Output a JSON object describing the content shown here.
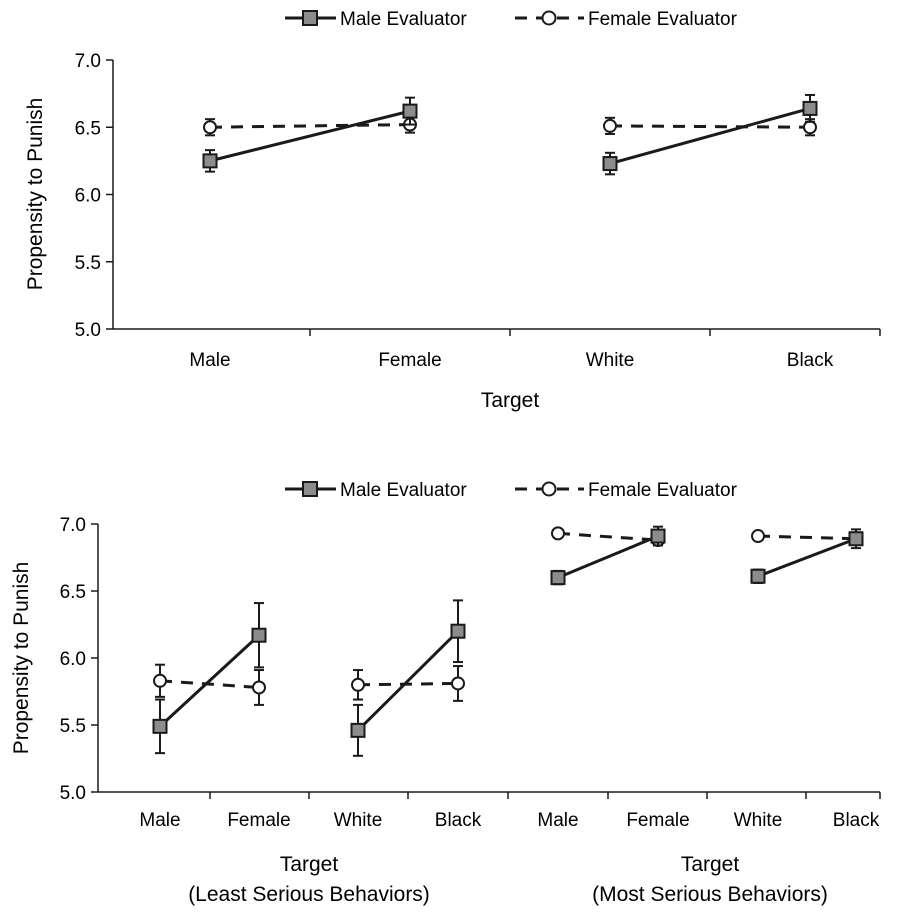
{
  "chart_data": [
    {
      "type": "line",
      "ylabel": "Propensity to Punish",
      "xlabel": "Target",
      "ylim": [
        5.0,
        7.0
      ],
      "yticks": [
        "5.0",
        "5.5",
        "6.0",
        "6.5",
        "7.0"
      ],
      "legend": {
        "placement": "top-center",
        "entries": [
          "Male Evaluator",
          "Female Evaluator"
        ]
      },
      "groups": [
        {
          "categories": [
            "Male",
            "Female"
          ]
        },
        {
          "categories": [
            "White",
            "Black"
          ]
        }
      ],
      "series": [
        {
          "name": "Male Evaluator",
          "style": "solid",
          "marker": "square",
          "groups": [
            {
              "values": [
                6.25,
                6.62
              ],
              "errors": [
                0.08,
                0.1
              ]
            },
            {
              "values": [
                6.23,
                6.64
              ],
              "errors": [
                0.08,
                0.1
              ]
            }
          ]
        },
        {
          "name": "Female Evaluator",
          "style": "dashed",
          "marker": "circle",
          "groups": [
            {
              "values": [
                6.5,
                6.52
              ],
              "errors": [
                0.06,
                0.06
              ]
            },
            {
              "values": [
                6.51,
                6.5
              ],
              "errors": [
                0.06,
                0.06
              ]
            }
          ]
        }
      ]
    },
    {
      "type": "line",
      "ylabel": "Propensity to Punish",
      "ylim": [
        5.0,
        7.0
      ],
      "yticks": [
        "5.0",
        "5.5",
        "6.0",
        "6.5",
        "7.0"
      ],
      "legend": {
        "placement": "top-center",
        "entries": [
          "Male Evaluator",
          "Female Evaluator"
        ]
      },
      "groups": [
        {
          "categories": [
            "Male",
            "Female"
          ]
        },
        {
          "categories": [
            "White",
            "Black"
          ]
        },
        {
          "categories": [
            "Male",
            "Female"
          ]
        },
        {
          "categories": [
            "White",
            "Black"
          ]
        }
      ],
      "group_labels": [
        {
          "line1": "Target",
          "line2": "(Least Serious Behaviors)"
        },
        {
          "line1": "Target",
          "line2": "(Most Serious Behaviors)"
        }
      ],
      "series": [
        {
          "name": "Male Evaluator",
          "style": "solid",
          "marker": "square",
          "groups": [
            {
              "values": [
                5.49,
                6.17
              ],
              "errors": [
                0.2,
                0.24
              ]
            },
            {
              "values": [
                5.46,
                6.2
              ],
              "errors": [
                0.19,
                0.23
              ]
            },
            {
              "values": [
                6.6,
                6.91
              ],
              "errors": [
                0.05,
                0.07
              ]
            },
            {
              "values": [
                6.61,
                6.89
              ],
              "errors": [
                0.05,
                0.07
              ]
            }
          ]
        },
        {
          "name": "Female Evaluator",
          "style": "dashed",
          "marker": "circle",
          "groups": [
            {
              "values": [
                5.83,
                5.78
              ],
              "errors": [
                0.12,
                0.13
              ]
            },
            {
              "values": [
                5.8,
                5.81
              ],
              "errors": [
                0.11,
                0.13
              ]
            },
            {
              "values": [
                6.93,
                6.88
              ],
              "errors": [
                0.02,
                0.03
              ]
            },
            {
              "values": [
                6.91,
                6.89
              ],
              "errors": [
                0.02,
                0.03
              ]
            }
          ]
        }
      ]
    }
  ]
}
